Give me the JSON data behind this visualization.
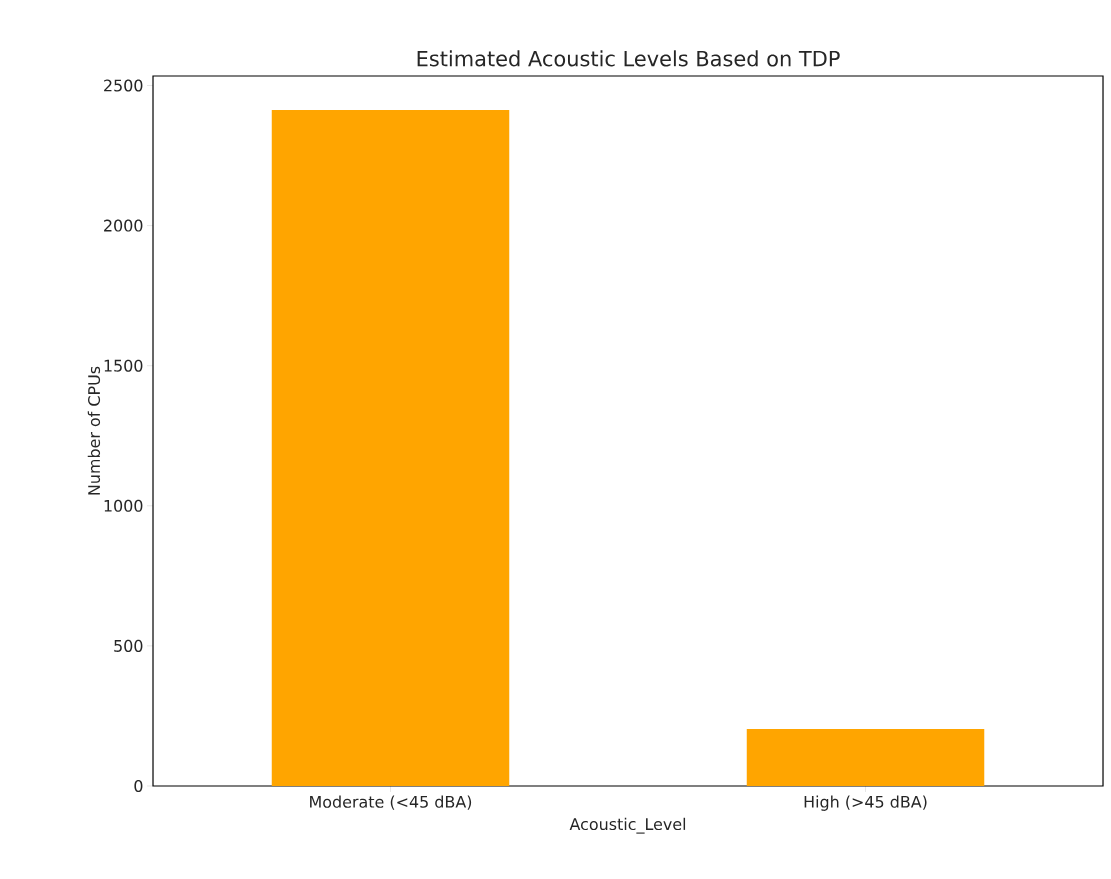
{
  "chart_data": {
    "type": "bar",
    "title": "Estimated Acoustic Levels Based on TDP",
    "xlabel": "Acoustic_Level",
    "ylabel": "Number of CPUs",
    "categories": [
      "Moderate (<45 dBA)",
      "High (>45 dBA)"
    ],
    "values": [
      2413,
      203
    ],
    "color": "#ffa500",
    "ylim": [
      0,
      2534
    ],
    "yticks": [
      0,
      500,
      1000,
      1500,
      2000,
      2500
    ],
    "grid": false
  }
}
